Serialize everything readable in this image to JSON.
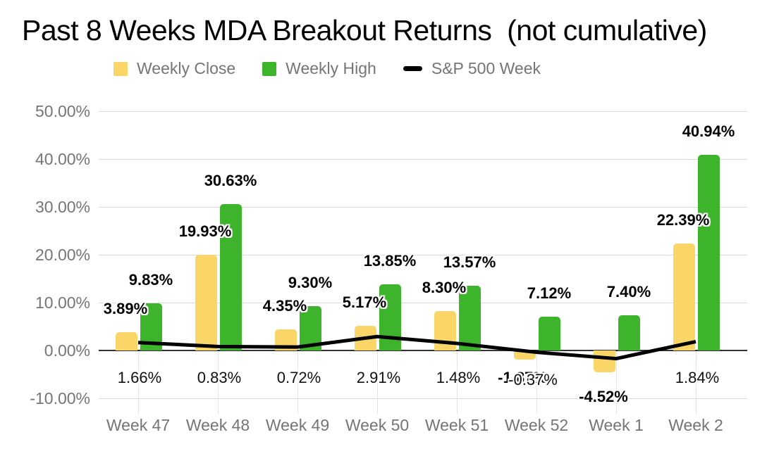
{
  "title": "Past 8 Weeks MDA Breakout Returns  (not cumulative)",
  "legend": {
    "items": [
      {
        "label": "Weekly Close",
        "swatch": "square",
        "color": "#F9D667"
      },
      {
        "label": "Weekly High",
        "swatch": "square",
        "color": "#3EB42C"
      },
      {
        "label": "S&P 500 Week",
        "swatch": "line",
        "color": "#000000"
      }
    ]
  },
  "y_axis": {
    "ticks": [
      {
        "label": "50.00%",
        "value": 50
      },
      {
        "label": "40.00%",
        "value": 40
      },
      {
        "label": "30.00%",
        "value": 30
      },
      {
        "label": "20.00%",
        "value": 20
      },
      {
        "label": "10.00%",
        "value": 10
      },
      {
        "label": "0.00%",
        "value": 0
      },
      {
        "label": "-10.00%",
        "value": -10
      }
    ]
  },
  "x_axis": {
    "labels": [
      "Week 47",
      "Week 48",
      "Week 49",
      "Week 50",
      "Week 51",
      "Week 52",
      "Week 1",
      "Week 2"
    ]
  },
  "chart_data": {
    "type": "combo",
    "title": "Past 8 Weeks MDA Breakout Returns  (not cumulative)",
    "categories": [
      "Week 47",
      "Week 48",
      "Week 49",
      "Week 50",
      "Week 51",
      "Week 52",
      "Week 1",
      "Week 2"
    ],
    "ylim": [
      -10,
      50
    ],
    "y_tick_step": 10,
    "grid": true,
    "legend_position": "top",
    "background": "#ffffff",
    "series": [
      {
        "name": "Weekly Close",
        "type": "bar",
        "color": "#F9D667",
        "values": [
          3.89,
          19.93,
          4.35,
          5.17,
          8.3,
          -1.87,
          -4.52,
          22.39
        ],
        "labels": [
          "3.89%",
          "19.93%",
          "4.35%",
          "5.17%",
          "8.30%",
          "-1.87%",
          "-4.52%",
          "22.39%"
        ]
      },
      {
        "name": "Weekly High",
        "type": "bar",
        "color": "#3EB42C",
        "values": [
          9.83,
          30.63,
          9.3,
          13.85,
          13.57,
          7.12,
          7.4,
          40.94
        ],
        "labels": [
          "9.83%",
          "30.63%",
          "9.30%",
          "13.85%",
          "13.57%",
          "7.12%",
          "7.40%",
          "40.94%"
        ]
      },
      {
        "name": "S&P 500 Week",
        "type": "line",
        "color": "#000000",
        "values": [
          1.66,
          0.83,
          0.72,
          2.91,
          1.48,
          -0.37,
          -1.7,
          1.84
        ],
        "labels": [
          "1.66%",
          "0.83%",
          "0.72%",
          "2.91%",
          "1.48%",
          "-0.37%",
          "",
          "1.84%"
        ]
      }
    ]
  }
}
